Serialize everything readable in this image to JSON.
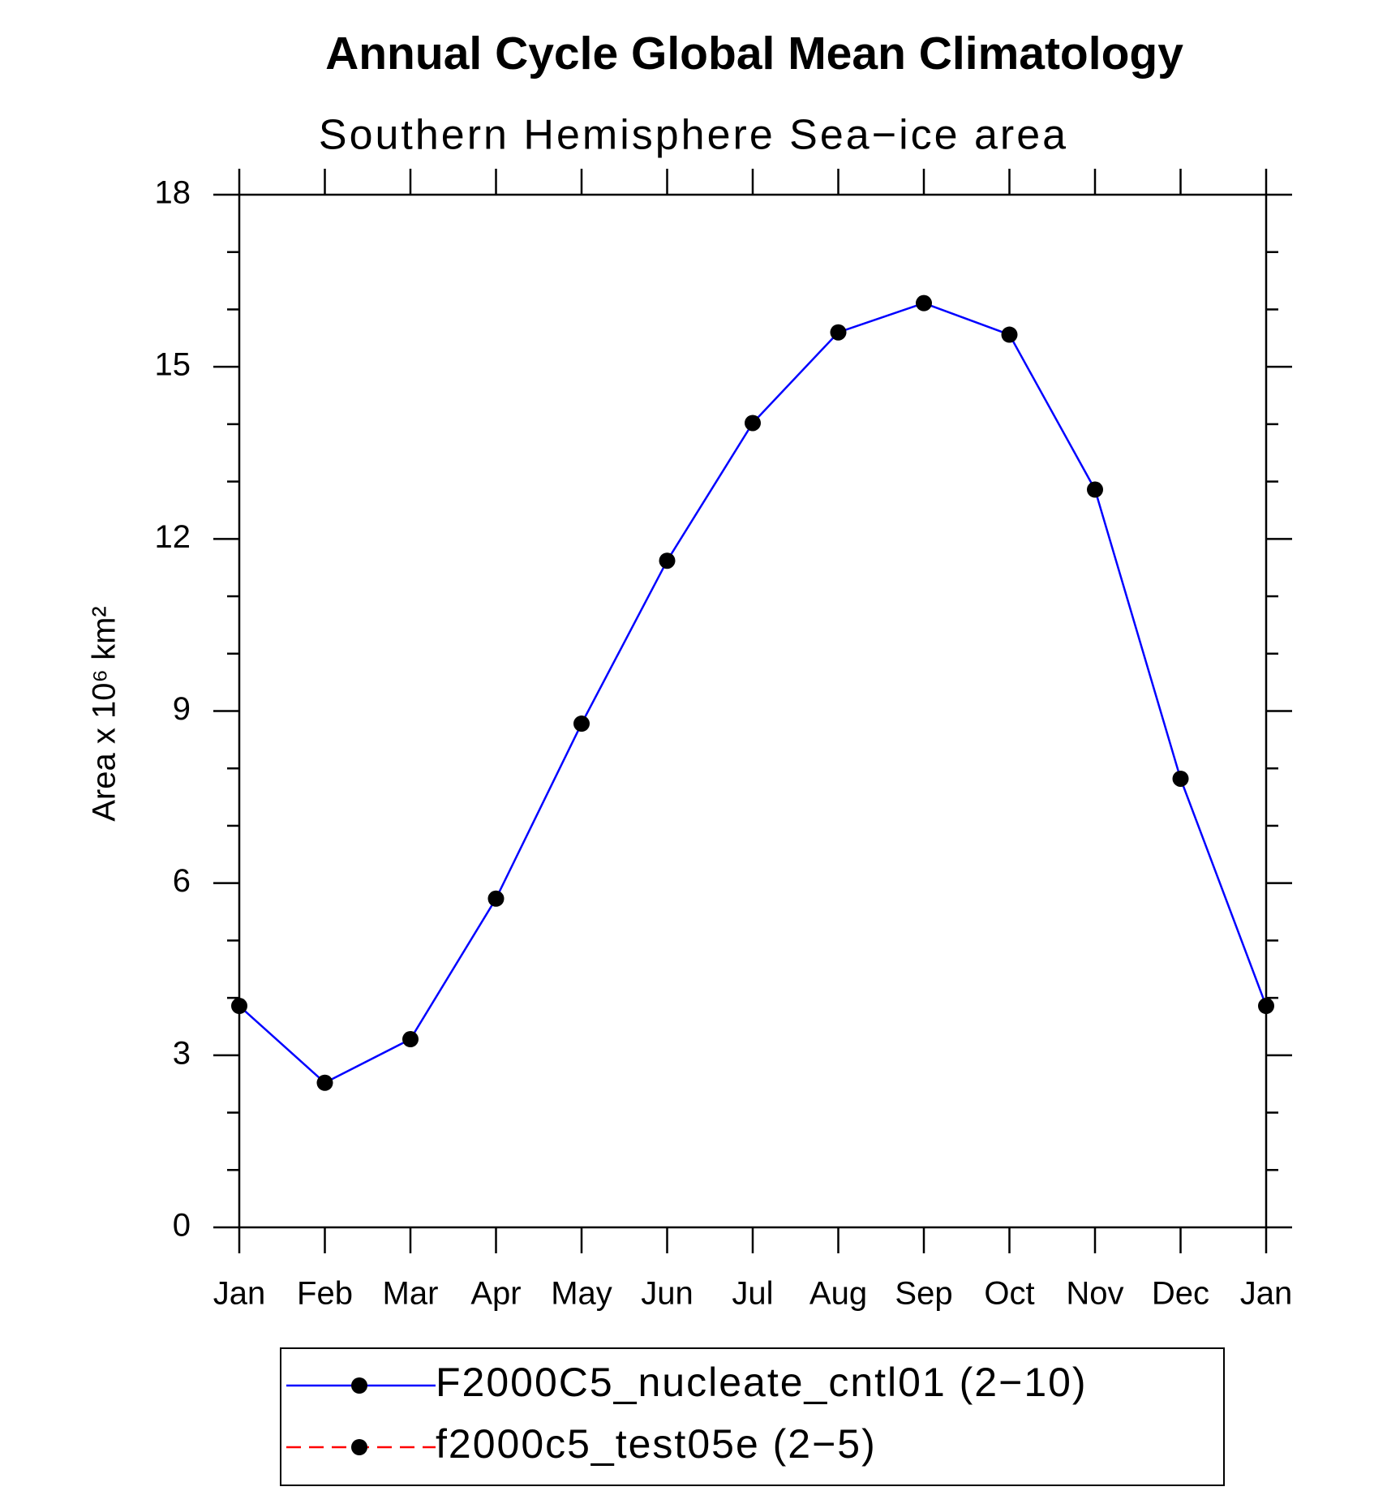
{
  "chart_data": {
    "type": "line",
    "title": "Annual Cycle Global Mean Climatology",
    "subtitle": "Southern Hemisphere Sea−ice area",
    "y_label": "Area x 10⁶ km²",
    "categories": [
      "Jan",
      "Feb",
      "Mar",
      "Apr",
      "May",
      "Jun",
      "Jul",
      "Aug",
      "Sep",
      "Oct",
      "Nov",
      "Dec",
      "Jan"
    ],
    "series": [
      {
        "name": "F2000C5_nucleate_cntl01 (2−10)",
        "color": "#0000ff",
        "dash": false,
        "values": [
          3.86,
          2.52,
          3.28,
          5.73,
          8.78,
          11.62,
          14.02,
          15.6,
          16.11,
          15.56,
          12.86,
          7.82,
          3.86
        ]
      },
      {
        "name": "f2000c5_test05e (2−5)",
        "color": "#ff0000",
        "dash": true,
        "values": [
          null,
          null,
          null,
          null,
          null,
          null,
          null,
          null,
          null,
          null,
          null,
          null,
          null
        ]
      }
    ],
    "marker_color": "#000000",
    "ylim": [
      0,
      18
    ],
    "yticks": [
      0,
      3,
      6,
      9,
      12,
      15,
      18
    ],
    "grid": false
  }
}
